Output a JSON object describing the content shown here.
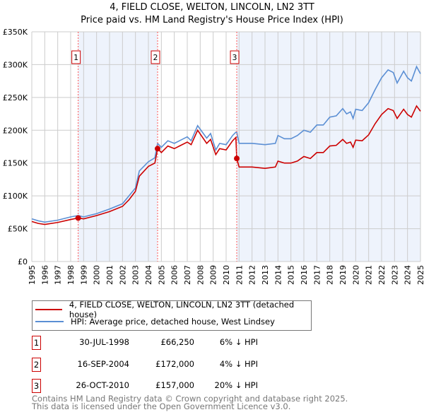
{
  "chart_data": {
    "type": "line",
    "title": "4, FIELD CLOSE, WELTON, LINCOLN, LN2 3TT",
    "subtitle": "Price paid vs. HM Land Registry's House Price Index (HPI)",
    "ylim": [
      0,
      350000
    ],
    "xlim": [
      1995,
      2025
    ],
    "y_ticks": [
      0,
      50000,
      100000,
      150000,
      200000,
      250000,
      300000,
      350000
    ],
    "y_tick_labels": [
      "£0",
      "£50K",
      "£100K",
      "£150K",
      "£200K",
      "£250K",
      "£300K",
      "£350K"
    ],
    "x_tick_labels": [
      "1995",
      "1996",
      "1997",
      "1998",
      "1999",
      "2000",
      "2001",
      "2002",
      "2003",
      "2004",
      "2005",
      "2006",
      "2007",
      "2008",
      "2009",
      "2010",
      "2011",
      "2012",
      "2013",
      "2014",
      "2015",
      "2016",
      "2017",
      "2018",
      "2019",
      "2020",
      "2021",
      "2022",
      "2023",
      "2024",
      "2025"
    ],
    "grid": true,
    "colors": {
      "property": "#cc0000",
      "hpi": "#5b8fd4",
      "shade": "#eef3fc"
    },
    "x": [
      1995,
      1995.5,
      1996,
      1997,
      1998,
      1998.58,
      1999,
      2000,
      2001,
      2002,
      2002.5,
      2003,
      2003.3,
      2004,
      2004.5,
      2004.71,
      2005,
      2005.5,
      2006,
      2007,
      2007.3,
      2007.8,
      2008.5,
      2008.8,
      2009.2,
      2009.5,
      2010,
      2010.5,
      2010.75,
      2010.82,
      2011,
      2012,
      2013,
      2013.8,
      2014,
      2014.5,
      2015,
      2015.5,
      2016,
      2016.5,
      2017,
      2017.5,
      2018,
      2018.5,
      2019,
      2019.3,
      2019.6,
      2019.8,
      2020,
      2020.5,
      2021,
      2021.5,
      2022,
      2022.5,
      2022.9,
      2023.2,
      2023.7,
      2024,
      2024.3,
      2024.7,
      2025
    ],
    "series": [
      {
        "name": "4, FIELD CLOSE, WELTON, LINCOLN, LN2 3TT (detached house)",
        "values": [
          61,
          58,
          56.5,
          59.5,
          64,
          66.25,
          65,
          70,
          76,
          84,
          94,
          107,
          130,
          145,
          150,
          172,
          166,
          176,
          172,
          182,
          178,
          200,
          180,
          186,
          163,
          172,
          170,
          184,
          189,
          157,
          144,
          144,
          142,
          144,
          153,
          150,
          150,
          153,
          160,
          157,
          166,
          166,
          176,
          177,
          186,
          180,
          182,
          174,
          185,
          184,
          193,
          210,
          224,
          233,
          230,
          218,
          232,
          224,
          220,
          237,
          229
        ]
      },
      {
        "name": "HPI: Average price, detached house, West Lindsey",
        "values": [
          65,
          62,
          60,
          63,
          68,
          70,
          68,
          73,
          80,
          88,
          100,
          112,
          138,
          152,
          158,
          180,
          174,
          184,
          180,
          190,
          184,
          207,
          188,
          195,
          170,
          180,
          178,
          192,
          197,
          197,
          180,
          180,
          178,
          180,
          192,
          187,
          187,
          192,
          200,
          197,
          208,
          208,
          220,
          222,
          233,
          225,
          228,
          218,
          232,
          230,
          242,
          262,
          280,
          292,
          288,
          272,
          290,
          280,
          275,
          297,
          286
        ]
      }
    ],
    "value_unit": "thousand GBP",
    "sales": [
      {
        "label": "1",
        "x": 1998.58,
        "value": 66250,
        "date": "30-JUL-1998",
        "price": "£66,250",
        "hpi": "6% ↓ HPI"
      },
      {
        "label": "2",
        "x": 2004.71,
        "value": 172000,
        "date": "16-SEP-2004",
        "price": "£172,000",
        "hpi": "4% ↓ HPI"
      },
      {
        "label": "3",
        "x": 2010.82,
        "value": 157000,
        "date": "26-OCT-2010",
        "price": "£157,000",
        "hpi": "20% ↓ HPI"
      }
    ],
    "legend": {
      "property": "4, FIELD CLOSE, WELTON, LINCOLN, LN2 3TT (detached house)",
      "hpi": "HPI: Average price, detached house, West Lindsey"
    }
  },
  "footer": {
    "line1": "Contains HM Land Registry data © Crown copyright and database right 2025.",
    "line2": "This data is licensed under the Open Government Licence v3.0."
  }
}
